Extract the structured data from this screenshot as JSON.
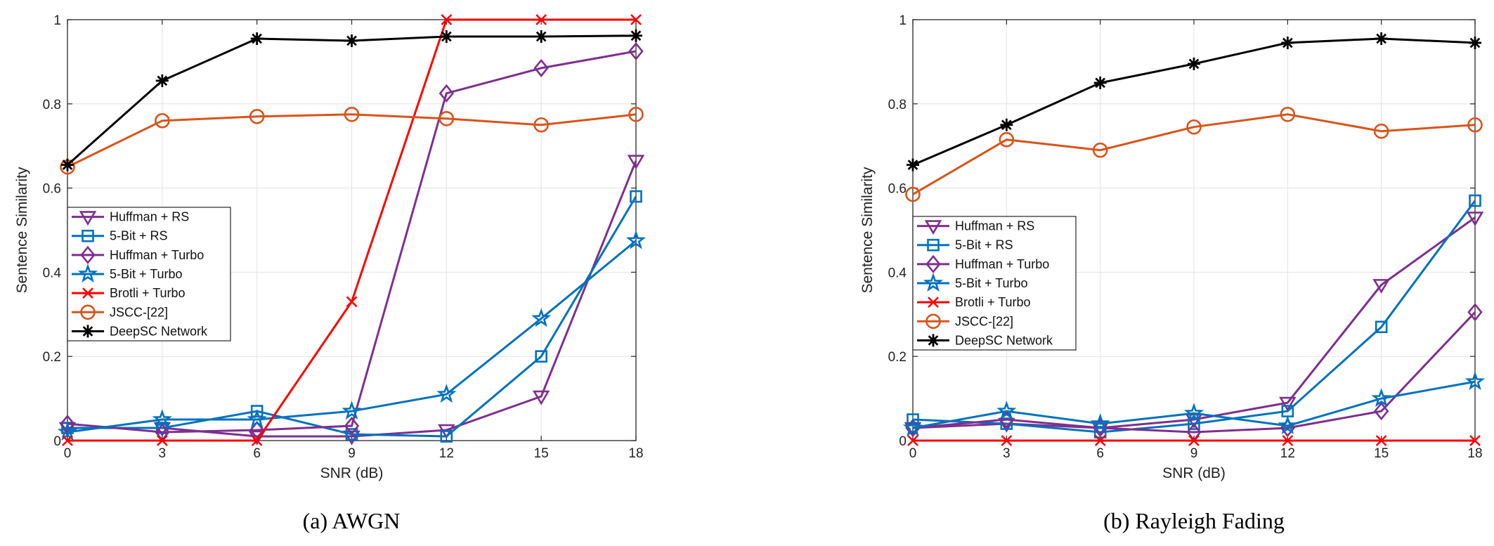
{
  "chart_data": [
    {
      "type": "line",
      "title": "",
      "caption": "(a)  AWGN",
      "xlabel": "SNR (dB)",
      "ylabel": "Sentence Similarity",
      "x": [
        0,
        3,
        6,
        9,
        12,
        15,
        18
      ],
      "xticks": [
        "0",
        "3",
        "6",
        "9",
        "12",
        "15",
        "18"
      ],
      "yticks": [
        "0",
        "0.2",
        "0.4",
        "0.6",
        "0.8",
        "1"
      ],
      "xlim": [
        0,
        18
      ],
      "ylim": [
        0,
        1
      ],
      "grid": true,
      "legend": "middle-left",
      "series": [
        {
          "name": "Huffman + RS",
          "color": "#7E2F8E",
          "marker": "triangle-down",
          "values": [
            0.03,
            0.03,
            0.01,
            0.01,
            0.025,
            0.105,
            0.665
          ]
        },
        {
          "name": "5-Bit + RS",
          "color": "#0072BD",
          "marker": "square",
          "values": [
            0.03,
            0.03,
            0.07,
            0.015,
            0.01,
            0.2,
            0.58
          ]
        },
        {
          "name": "Huffman + Turbo",
          "color": "#7E2F8E",
          "marker": "diamond",
          "values": [
            0.04,
            0.02,
            0.025,
            0.035,
            0.825,
            0.885,
            0.925
          ]
        },
        {
          "name": "5-Bit + Turbo",
          "color": "#0072BD",
          "marker": "star",
          "values": [
            0.02,
            0.05,
            0.05,
            0.07,
            0.11,
            0.29,
            0.475
          ]
        },
        {
          "name": "Brotli + Turbo",
          "color": "#FF0000",
          "marker": "x",
          "values": [
            0.0,
            0.0,
            0.0,
            0.33,
            1.0,
            1.0,
            1.0
          ]
        },
        {
          "name": "JSCC-[22]",
          "color": "#D95319",
          "marker": "circle",
          "values": [
            0.65,
            0.76,
            0.77,
            0.775,
            0.765,
            0.75,
            0.775
          ]
        },
        {
          "name": "DeepSC Network",
          "color": "#000000",
          "marker": "asterisk",
          "values": [
            0.655,
            0.855,
            0.955,
            0.95,
            0.96,
            0.96,
            0.962
          ]
        }
      ]
    },
    {
      "type": "line",
      "title": "",
      "caption": "(b)  Rayleigh Fading",
      "xlabel": "SNR (dB)",
      "ylabel": "Sentence Similarity",
      "x": [
        0,
        3,
        6,
        9,
        12,
        15,
        18
      ],
      "xticks": [
        "0",
        "3",
        "6",
        "9",
        "12",
        "15",
        "18"
      ],
      "yticks": [
        "0",
        "0.2",
        "0.4",
        "0.6",
        "0.8",
        "1"
      ],
      "xlim": [
        0,
        18
      ],
      "ylim": [
        0,
        1
      ],
      "grid": true,
      "legend": "middle-left",
      "series": [
        {
          "name": "Huffman + RS",
          "color": "#7E2F8E",
          "marker": "triangle-down",
          "values": [
            0.03,
            0.04,
            0.03,
            0.05,
            0.09,
            0.37,
            0.53
          ]
        },
        {
          "name": "5-Bit + RS",
          "color": "#0072BD",
          "marker": "square",
          "values": [
            0.05,
            0.04,
            0.02,
            0.04,
            0.07,
            0.27,
            0.57
          ]
        },
        {
          "name": "Huffman + Turbo",
          "color": "#7E2F8E",
          "marker": "diamond",
          "values": [
            0.03,
            0.05,
            0.03,
            0.02,
            0.03,
            0.07,
            0.305
          ]
        },
        {
          "name": "5-Bit + Turbo",
          "color": "#0072BD",
          "marker": "star",
          "values": [
            0.03,
            0.07,
            0.04,
            0.065,
            0.035,
            0.1,
            0.14
          ]
        },
        {
          "name": "Brotli + Turbo",
          "color": "#FF0000",
          "marker": "x",
          "values": [
            0.0,
            0.0,
            0.0,
            0.0,
            0.0,
            0.0,
            0.0
          ]
        },
        {
          "name": "JSCC-[22]",
          "color": "#D95319",
          "marker": "circle",
          "values": [
            0.585,
            0.715,
            0.69,
            0.745,
            0.775,
            0.735,
            0.75
          ]
        },
        {
          "name": "DeepSC Network",
          "color": "#000000",
          "marker": "asterisk",
          "values": [
            0.655,
            0.75,
            0.85,
            0.895,
            0.945,
            0.955,
            0.945
          ]
        }
      ]
    }
  ]
}
